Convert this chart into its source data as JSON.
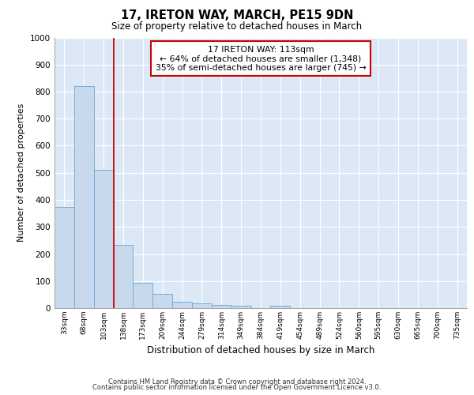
{
  "title1": "17, IRETON WAY, MARCH, PE15 9DN",
  "title2": "Size of property relative to detached houses in March",
  "xlabel": "Distribution of detached houses by size in March",
  "ylabel": "Number of detached properties",
  "categories": [
    "33sqm",
    "68sqm",
    "103sqm",
    "138sqm",
    "173sqm",
    "209sqm",
    "244sqm",
    "279sqm",
    "314sqm",
    "349sqm",
    "384sqm",
    "419sqm",
    "454sqm",
    "489sqm",
    "524sqm",
    "560sqm",
    "595sqm",
    "630sqm",
    "665sqm",
    "700sqm",
    "735sqm"
  ],
  "values": [
    375,
    820,
    510,
    235,
    93,
    52,
    22,
    17,
    12,
    10,
    0,
    10,
    0,
    0,
    0,
    0,
    0,
    0,
    0,
    0,
    0
  ],
  "bar_color": "#c8d9ee",
  "bar_edge_color": "#7aadd4",
  "annotation_text_line1": "17 IRETON WAY: 113sqm",
  "annotation_text_line2": "← 64% of detached houses are smaller (1,348)",
  "annotation_text_line3": "35% of semi-detached houses are larger (745) →",
  "annotation_box_color": "#cc0000",
  "vline_x_index": 2.5,
  "ylim": [
    0,
    1000
  ],
  "background_color": "#dce8f5",
  "grid_color": "#ffffff",
  "footer1": "Contains HM Land Registry data © Crown copyright and database right 2024.",
  "footer2": "Contains public sector information licensed under the Open Government Licence v3.0."
}
